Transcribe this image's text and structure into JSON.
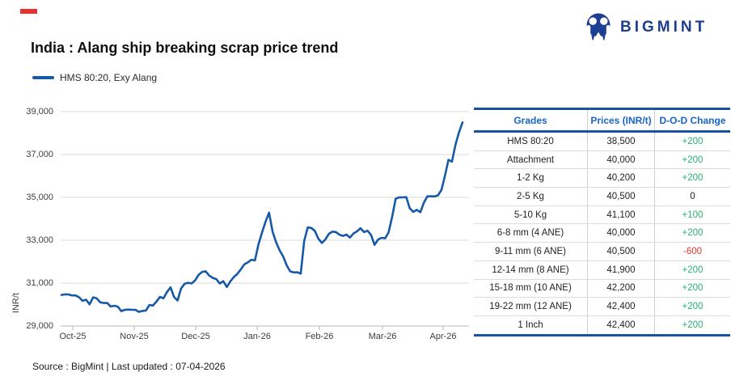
{
  "brand": {
    "logo_text": "BIGMINT",
    "color": "#1d3e91"
  },
  "title": "India : Alang ship breaking scrap price trend",
  "legend": {
    "label": "HMS 80:20, Exy Alang",
    "line_color": "#1659a8"
  },
  "footer": {
    "source_line": "Source : BigMint | Last updated : 07-04-2026"
  },
  "chart_data": {
    "type": "line",
    "title": "India : Alang ship breaking scrap price trend",
    "series_name": "HMS 80:20, Exy Alang",
    "xlabel": "",
    "ylabel": "INR/t",
    "ylim": [
      29000,
      39000
    ],
    "yticks": [
      29000,
      31000,
      33000,
      35000,
      37000,
      39000
    ],
    "ytick_labels": [
      "29,000",
      "31,000",
      "33,000",
      "35,000",
      "37,000",
      "39,000"
    ],
    "x_tick_labels": [
      "Oct-25",
      "Nov-25",
      "Dec-25",
      "Jan-26",
      "Feb-26",
      "Mar-26",
      "Apr-26"
    ],
    "x_range_note": "daily prices, Oct-2025 to 07-Apr-2026",
    "grid": "horizontal",
    "legend_position": "top-left",
    "line_color": "#1659a8",
    "values": [
      30450,
      30475,
      30470,
      30425,
      30425,
      30340,
      30175,
      30225,
      30010,
      30335,
      30290,
      30105,
      30070,
      30070,
      29910,
      29945,
      29905,
      29695,
      29755,
      29765,
      29755,
      29755,
      29660,
      29700,
      29720,
      29980,
      29955,
      30140,
      30360,
      30290,
      30585,
      30800,
      30360,
      30190,
      30750,
      30970,
      31015,
      30985,
      31130,
      31390,
      31525,
      31550,
      31350,
      31245,
      31190,
      30980,
      31090,
      30820,
      31080,
      31285,
      31430,
      31645,
      31880,
      31975,
      32090,
      32060,
      32800,
      33360,
      33860,
      34290,
      33400,
      32910,
      32530,
      32250,
      31835,
      31550,
      31500,
      31510,
      31440,
      32975,
      33600,
      33575,
      33440,
      33080,
      32875,
      33030,
      33300,
      33405,
      33380,
      33260,
      33200,
      33265,
      33125,
      33315,
      33415,
      33560,
      33380,
      33445,
      33240,
      32785,
      33035,
      33115,
      33090,
      33375,
      34100,
      34935,
      35000,
      35000,
      35010,
      34495,
      34320,
      34420,
      34310,
      34745,
      35050,
      35050,
      35050,
      35090,
      35345,
      36000,
      36750,
      36665,
      37455,
      38030,
      38500
    ]
  },
  "table": {
    "headers": [
      "Grades",
      "Prices (INR/t)",
      "D-O-D Change"
    ],
    "rows": [
      {
        "grade": "HMS 80:20",
        "price": "38,500",
        "change": "+200",
        "direction": "up"
      },
      {
        "grade": "Attachment",
        "price": "40,000",
        "change": "+200",
        "direction": "up"
      },
      {
        "grade": "1-2 Kg",
        "price": "40,200",
        "change": "+200",
        "direction": "up"
      },
      {
        "grade": "2-5 Kg",
        "price": "40,500",
        "change": "0",
        "direction": "flat"
      },
      {
        "grade": "5-10 Kg",
        "price": "41,100",
        "change": "+100",
        "direction": "up"
      },
      {
        "grade": "6-8 mm (4 ANE)",
        "price": "40,000",
        "change": "+200",
        "direction": "up"
      },
      {
        "grade": "9-11 mm (6 ANE)",
        "price": "40,500",
        "change": "-600",
        "direction": "down"
      },
      {
        "grade": "12-14 mm (8 ANE)",
        "price": "41,900",
        "change": "+200",
        "direction": "up"
      },
      {
        "grade": "15-18 mm (10 ANE)",
        "price": "42,200",
        "change": "+200",
        "direction": "up"
      },
      {
        "grade": "19-22 mm (12 ANE)",
        "price": "42,400",
        "change": "+200",
        "direction": "up"
      },
      {
        "grade": "1 Inch",
        "price": "42,400",
        "change": "+200",
        "direction": "up"
      }
    ],
    "colors": {
      "up": "#27b173",
      "down": "#e9352c",
      "flat": "#1f1f1f"
    }
  }
}
